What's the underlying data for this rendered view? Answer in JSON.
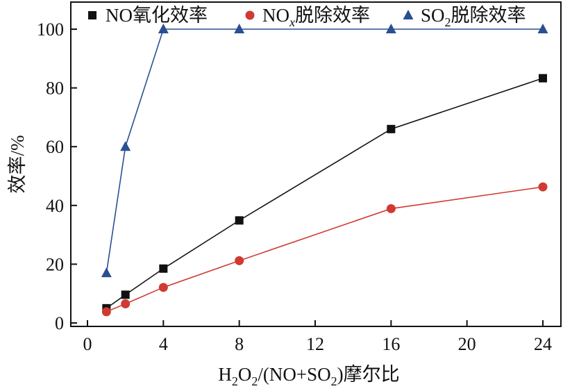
{
  "chart_data": {
    "type": "line",
    "xlabel": {
      "parts": [
        "H",
        "2",
        "O",
        "2",
        "/(NO+SO",
        "2",
        ")摩尔比"
      ]
    },
    "ylabel": "效率/%",
    "xlim": [
      -1,
      25
    ],
    "ylim": [
      -2,
      110
    ],
    "xticks": [
      0,
      4,
      8,
      12,
      16,
      20,
      24
    ],
    "yticks": [
      0,
      20,
      40,
      60,
      80,
      100
    ],
    "grid": false,
    "legend_position": "top",
    "series": [
      {
        "key": "no_oxidation",
        "name": "NO氧化效率",
        "name_parts": [
          "NO氧化效率"
        ],
        "color": "#111111",
        "marker": "square",
        "x": [
          1,
          2,
          4,
          8,
          16,
          24
        ],
        "y": [
          5,
          9.6,
          18.5,
          34.9,
          66,
          83.3
        ]
      },
      {
        "key": "nox_removal",
        "name": "NOx脱除效率",
        "name_parts": [
          "NO",
          "x",
          "脱除效率"
        ],
        "color": "#d03a32",
        "marker": "circle",
        "x": [
          1,
          2,
          4,
          8,
          16,
          24
        ],
        "y": [
          3.8,
          6.5,
          12.1,
          21.2,
          38.9,
          46.3
        ]
      },
      {
        "key": "so2_removal",
        "name": "SO2脱除效率",
        "name_parts": [
          "SO",
          "2",
          "脱除效率"
        ],
        "color": "#2b4f93",
        "marker": "triangle",
        "x": [
          1,
          2,
          4,
          8,
          16,
          24
        ],
        "y": [
          17,
          60,
          100,
          100,
          100,
          100
        ]
      }
    ]
  }
}
